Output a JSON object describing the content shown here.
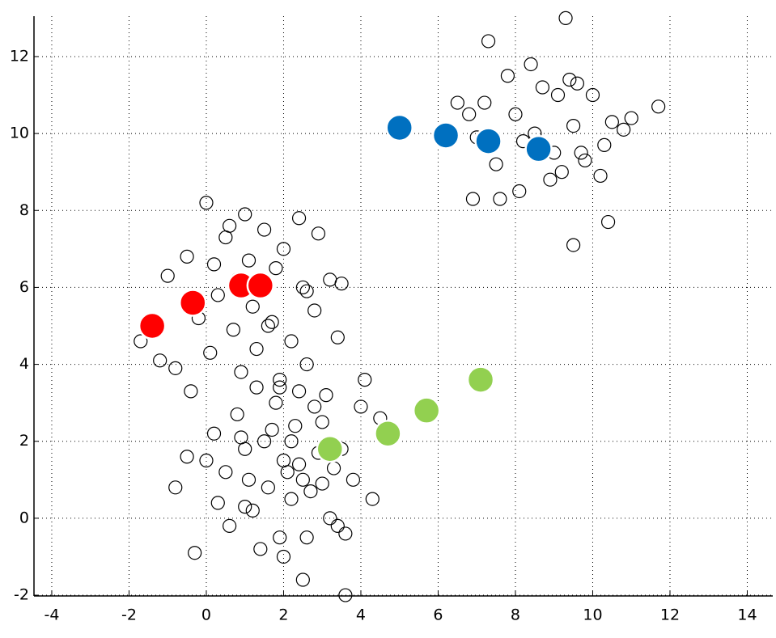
{
  "chart_data": {
    "type": "scatter",
    "xlim": [
      -4.46,
      14.66
    ],
    "ylim": [
      -2.02,
      13.05
    ],
    "xticks": [
      -4,
      -2,
      0,
      2,
      4,
      6,
      8,
      10,
      12,
      14
    ],
    "yticks": [
      -2,
      0,
      2,
      4,
      6,
      8,
      10,
      12
    ],
    "grid": true,
    "series": [
      {
        "color": "#000000",
        "marker": "open",
        "x": [
          2.0,
          1.5,
          2.5,
          1.0,
          3.0,
          2.2,
          1.8,
          0.5,
          3.5,
          2.8,
          1.2,
          2.6,
          0.2,
          3.8,
          1.9,
          2.3,
          1.4,
          0.8,
          3.2,
          2.1,
          1.6,
          2.9,
          0.0,
          4.0,
          2.4,
          1.1,
          3.4,
          -0.5,
          4.3,
          1.7,
          2.7,
          0.6,
          3.1,
          2.0,
          -0.8,
          4.5,
          1.3,
          2.5,
          3.6,
          0.3,
          2.2,
          1.0,
          3.3,
          4.1,
          -0.3,
          2.6,
          1.9,
          0.9,
          2.4,
          3.0,
          3.6,
          0.0,
          1.0,
          1.5,
          0.5,
          2.0,
          -0.5,
          1.8,
          0.8,
          2.5,
          -1.0,
          0.3,
          1.2,
          2.8,
          -0.2,
          0.7,
          1.6,
          2.2,
          -1.2,
          0.1,
          1.3,
          3.2,
          -0.8,
          2.4,
          0.9,
          1.9,
          3.4,
          -0.4,
          0.6,
          1.1,
          2.6,
          -1.7,
          0.2,
          1.7,
          3.5,
          2.9,
          8.5,
          9.0,
          8.0,
          9.5,
          7.5,
          10.0,
          8.7,
          9.2,
          7.8,
          10.5,
          8.2,
          9.8,
          7.2,
          10.8,
          8.9,
          9.4,
          6.8,
          10.3,
          8.4,
          9.7,
          7.0,
          11.0,
          8.1,
          9.1,
          7.6,
          10.2,
          6.5,
          9.6,
          7.3,
          8.6,
          9.3,
          11.7,
          10.4,
          9.5,
          6.9
        ],
        "values": [
          1.5,
          2.0,
          1.0,
          1.8,
          2.5,
          0.5,
          3.0,
          1.2,
          1.8,
          2.9,
          0.2,
          -0.5,
          2.2,
          1.0,
          3.6,
          2.4,
          -0.8,
          2.7,
          0.0,
          1.2,
          0.8,
          1.7,
          1.5,
          2.9,
          3.3,
          1.0,
          -0.2,
          1.6,
          0.5,
          2.3,
          0.7,
          -0.2,
          3.2,
          -1.0,
          0.8,
          2.6,
          3.4,
          -1.6,
          -0.4,
          0.4,
          2.0,
          0.3,
          1.3,
          3.6,
          -0.9,
          4.0,
          -0.5,
          2.1,
          1.4,
          0.9,
          -2.0,
          8.2,
          7.9,
          7.5,
          7.3,
          7.0,
          6.8,
          6.5,
          6.2,
          6.0,
          6.3,
          5.8,
          5.5,
          5.4,
          5.2,
          4.9,
          5.0,
          4.6,
          4.1,
          4.3,
          4.4,
          6.2,
          3.9,
          7.8,
          3.8,
          3.4,
          4.7,
          3.3,
          7.6,
          6.7,
          5.9,
          4.6,
          6.6,
          5.1,
          6.1,
          7.4,
          10.0,
          9.5,
          10.5,
          10.2,
          9.2,
          11.0,
          11.2,
          9.0,
          11.5,
          10.3,
          9.8,
          9.3,
          10.8,
          10.1,
          8.8,
          11.4,
          10.5,
          9.7,
          11.8,
          9.5,
          9.9,
          10.4,
          8.5,
          11.0,
          8.3,
          8.9,
          10.8,
          11.3,
          12.4,
          9.6,
          13.0,
          10.7,
          7.7,
          7.1,
          8.3
        ]
      },
      {
        "color": "#ff0000",
        "marker": "filled",
        "x": [
          -1.4,
          -0.35,
          0.9,
          1.4
        ],
        "values": [
          5.0,
          5.6,
          6.05,
          6.05
        ]
      },
      {
        "color": "#0070c0",
        "marker": "filled",
        "x": [
          5.0,
          6.2,
          7.3,
          8.6
        ],
        "values": [
          10.15,
          9.95,
          9.8,
          9.6
        ]
      },
      {
        "color": "#92d050",
        "marker": "filled",
        "x": [
          3.2,
          4.7,
          5.7,
          7.1
        ],
        "values": [
          1.8,
          2.2,
          2.8,
          3.6
        ]
      }
    ]
  }
}
